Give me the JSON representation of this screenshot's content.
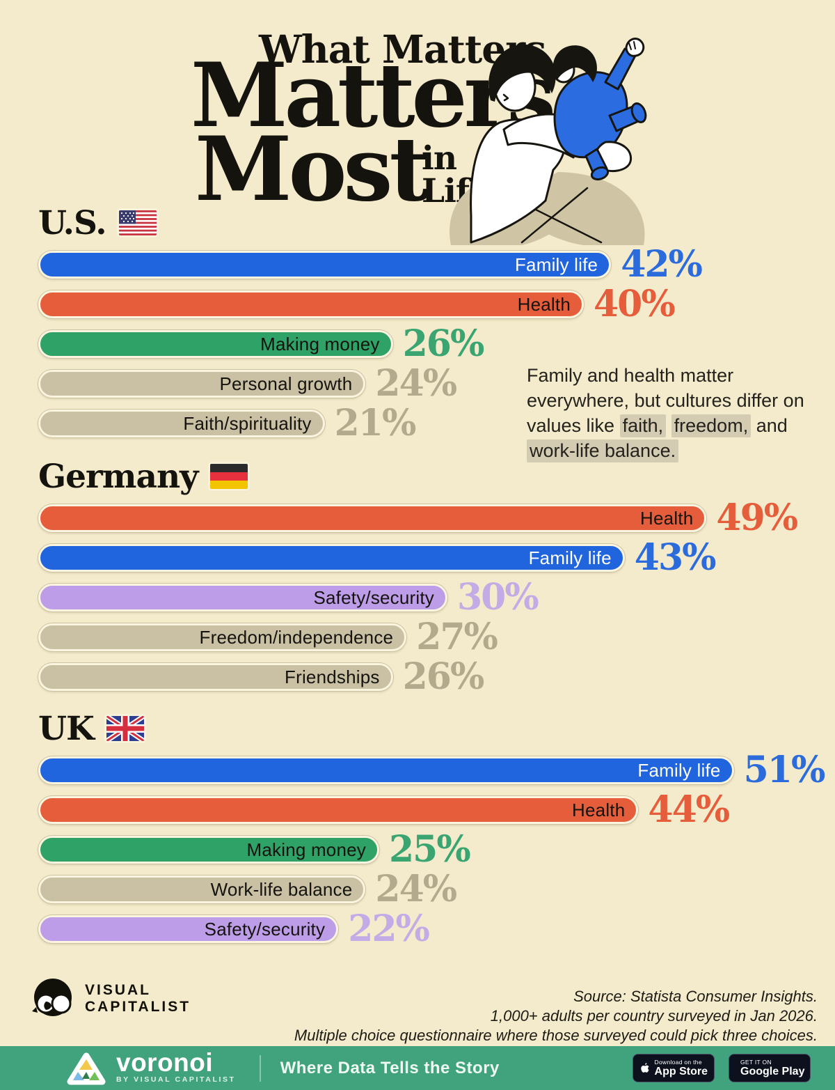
{
  "title": {
    "eyebrow": "What Matters",
    "word1": "Matters",
    "word2": "Most",
    "tail1": "in",
    "tail2": "Life?"
  },
  "annotation_segments": [
    {
      "text": "Family and health matter everywhere, but cultures differ on values like ",
      "hl": false
    },
    {
      "text": "faith,",
      "hl": true
    },
    {
      "text": " ",
      "hl": false
    },
    {
      "text": "freedom,",
      "hl": true
    },
    {
      "text": " and ",
      "hl": false
    },
    {
      "text": "work-life balance.",
      "hl": true
    }
  ],
  "chart_data": [
    {
      "type": "bar",
      "title": "U.S.",
      "flag": "us-flag-icon",
      "unit": "%",
      "categories": [
        "Family life",
        "Health",
        "Making money",
        "Personal growth",
        "Faith/spirituality"
      ],
      "values": [
        42,
        40,
        26,
        24,
        21
      ],
      "colors": [
        "blue",
        "orange",
        "green",
        "tan",
        "tan"
      ],
      "xlim": [
        0,
        55
      ],
      "orientation": "horizontal",
      "value_labels": "outside-end"
    },
    {
      "type": "bar",
      "title": "Germany",
      "flag": "de-flag-icon",
      "unit": "%",
      "categories": [
        "Health",
        "Family life",
        "Safety/security",
        "Freedom/independence",
        "Friendships"
      ],
      "values": [
        49,
        43,
        30,
        27,
        26
      ],
      "colors": [
        "orange",
        "blue",
        "purple",
        "tan",
        "tan"
      ],
      "xlim": [
        0,
        55
      ],
      "orientation": "horizontal",
      "value_labels": "outside-end"
    },
    {
      "type": "bar",
      "title": "UK",
      "flag": "gb-flag-icon",
      "unit": "%",
      "categories": [
        "Family life",
        "Health",
        "Making money",
        "Work-life balance",
        "Safety/security"
      ],
      "values": [
        51,
        44,
        25,
        24,
        22
      ],
      "colors": [
        "blue",
        "orange",
        "green",
        "tan",
        "purple"
      ],
      "xlim": [
        0,
        55
      ],
      "orientation": "horizontal",
      "value_labels": "outside-end"
    }
  ],
  "palette": {
    "blue": {
      "bar": "#2065dd",
      "value": "#2b6bdc",
      "label": "#ffffff"
    },
    "orange": {
      "bar": "#e55d3b",
      "value": "#e55d3b",
      "label": "#15130e"
    },
    "green": {
      "bar": "#2ea267",
      "value": "#3aa571",
      "label": "#15130e"
    },
    "tan": {
      "bar": "#cac1a5",
      "value": "#b3aa8e",
      "label": "#15130e"
    },
    "purple": {
      "bar": "#bd9ce8",
      "value": "#c3abe6",
      "label": "#15130e"
    }
  },
  "page_colors": {
    "background": "#f4ebcc",
    "brandbar_background": "#41a37e",
    "annotation_highlight": "#d4cbb3",
    "title_text": "#15130e"
  },
  "footer": {
    "source_lines": [
      "Source: Statista Consumer Insights.",
      "1,000+ adults per country surveyed in Jan 2026.",
      "Multiple choice questionnaire where those surveyed could pick three choices."
    ],
    "vc_logo_line1": "VISUAL",
    "vc_logo_line2": "CAPITALIST"
  },
  "brandbar": {
    "logo_name": "voronoi",
    "logo_sub": "BY VISUAL CAPITALIST",
    "tagline": "Where Data Tells the Story",
    "appstore": {
      "top": "Download on the",
      "bottom": "App Store"
    },
    "googleplay": {
      "top": "GET IT ON",
      "bottom": "Google Play"
    }
  }
}
